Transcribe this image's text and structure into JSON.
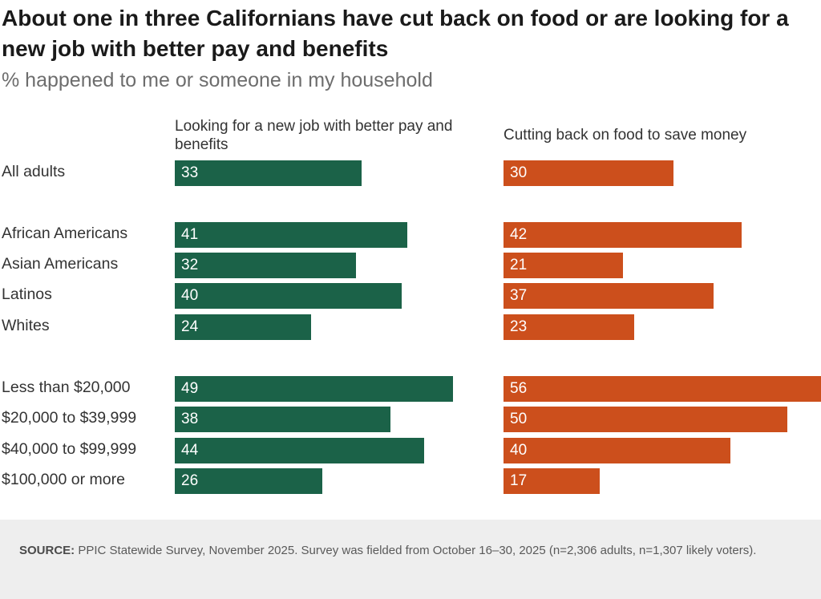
{
  "chart_data": {
    "type": "bar",
    "orientation": "horizontal",
    "title": "About one in three Californians have cut back on food or are looking for a new job with better pay and benefits",
    "subtitle": "% happened to me or someone in my household",
    "categories": [
      "All adults",
      "African Americans",
      "Asian Americans",
      "Latinos",
      "Whites",
      "Less than $20,000",
      "$20,000 to $39,999",
      "$40,000 to $99,999",
      "$100,000 or more"
    ],
    "series": [
      {
        "name": "Looking for a new job with better pay and benefits",
        "values": [
          33,
          41,
          32,
          40,
          24,
          49,
          38,
          44,
          26
        ],
        "color": "#1b6248"
      },
      {
        "name": "Cutting back on food to save money",
        "values": [
          30,
          42,
          21,
          37,
          23,
          56,
          50,
          40,
          17
        ],
        "color": "#cc4f1c"
      }
    ],
    "xlim": [
      0,
      56
    ]
  },
  "footer": {
    "source_label": "SOURCE:",
    "source_text": "PPIC Statewide Survey, November 2025. Survey was fielded from October 16–30, 2025 (n=2,306 adults, n=1,307 likely voters)."
  }
}
